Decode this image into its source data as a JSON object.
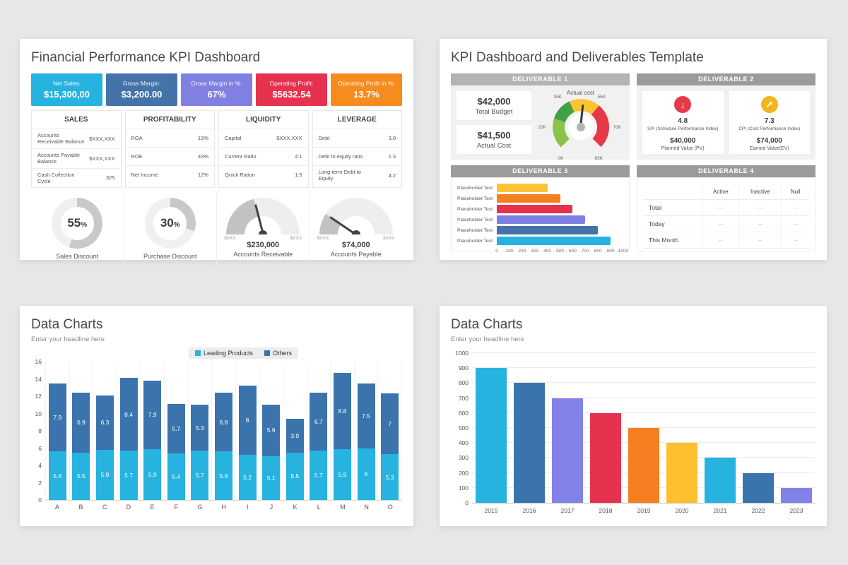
{
  "background": "#e7e7e9",
  "slide1": {
    "title": "Financial Performance KPI Dashboard",
    "kpis": [
      {
        "label": "Net Sales:",
        "value": "$15,300,00",
        "color": "#26b3e0"
      },
      {
        "label": "Gross Margin:",
        "value": "$3,200.00",
        "color": "#4373a8"
      },
      {
        "label": "Gross Margin in %:",
        "value": "67%",
        "color": "#8080e2"
      },
      {
        "label": "Operating Profit:",
        "value": "$5632.54",
        "color": "#e6324e"
      },
      {
        "label": "Operating Profit in %:",
        "value": "13.7%",
        "color": "#f68b1e"
      }
    ],
    "tables": [
      {
        "title": "SALES",
        "rows": [
          [
            "Accounts Receivable Balance",
            "$XXX,XXX"
          ],
          [
            "Accounts Payable Balance",
            "$XXX,XXX"
          ],
          [
            "Cash Collection Cycle",
            "325"
          ]
        ]
      },
      {
        "title": "PROFITABILITY",
        "rows": [
          [
            "ROA",
            "19%"
          ],
          [
            "ROE",
            "43%"
          ],
          [
            "Net Income",
            "12%"
          ]
        ]
      },
      {
        "title": "LIQUIDITY",
        "rows": [
          [
            "Capital",
            "$XXX,XXX"
          ],
          [
            "Current Ratio",
            "4:1"
          ],
          [
            "Quick Ration",
            "1:5"
          ]
        ]
      },
      {
        "title": "LEVERAGE",
        "rows": [
          [
            "Debt",
            "3.0"
          ],
          [
            "Debt to equity ratio",
            "1:3"
          ],
          [
            "Long-term Debt to Equity",
            "4:2"
          ]
        ]
      }
    ],
    "donuts": [
      {
        "percent": 55,
        "label": "Sales Discount",
        "arc_color": "#c9c9c9",
        "track_color": "#f0f0f0"
      },
      {
        "percent": 30,
        "label": "Purchase Discount",
        "arc_color": "#c9c9c9",
        "track_color": "#f0f0f0"
      }
    ],
    "gauges": [
      {
        "min_label": "$XXX",
        "max_label": "$XXX",
        "value": "$230,000",
        "label": "Accounts Receivable",
        "fill_pct": 42,
        "fill_color": "#c2c2c2",
        "track_color": "#eeeeee"
      },
      {
        "min_label": "$XXX",
        "max_label": "$XXX",
        "value": "$74,000",
        "label": "Accounts Payable",
        "fill_pct": 19,
        "fill_color": "#c2c2c2",
        "track_color": "#eeeeee"
      }
    ]
  },
  "slide2": {
    "title": "KPI Dashboard and Deliverables Template",
    "deliverable1": {
      "header": "DELIVERABLE 1",
      "header_color": "#b3b3b3",
      "boxes": [
        {
          "value": "$42,000",
          "label": "Total Budget"
        },
        {
          "value": "$41,500",
          "label": "Actual Cost"
        }
      ],
      "gauge": {
        "title": "Actual cost",
        "ticks": {
          "bottom_left": "0K",
          "left": "20K",
          "top_left": "35K",
          "top_right": "55K",
          "right": "70K",
          "bottom_right": "85K"
        },
        "segments": [
          {
            "to_deg": 63,
            "color": "#8bc34a"
          },
          {
            "to_deg": 111,
            "color": "#43a047"
          },
          {
            "to_deg": 175,
            "color": "#fcc335"
          },
          {
            "to_deg": 270,
            "color": "#e53946"
          }
        ],
        "needle_deg": 6
      }
    },
    "deliverable2": {
      "header": "DELIVERABLE 2",
      "header_color": "#9b9b9b",
      "cards": [
        {
          "icon": "down-arrow-icon",
          "glyph": "↓",
          "circle_color": "#e6394b",
          "value": "4.8",
          "label": "SPI (Schedule Performance Index)",
          "amount": "$40,000",
          "amount_label": "Planned Value (PV)"
        },
        {
          "icon": "up-right-arrow-icon",
          "glyph": "↗",
          "circle_color": "#f2b51d",
          "value": "7.3",
          "label": "CPI (Cost Performance Index)",
          "amount": "$74,000",
          "amount_label": "Earned Value(EV)"
        }
      ]
    },
    "deliverable3": {
      "header": "DELIVERABLE 3",
      "header_color": "#9b9b9b"
    },
    "deliverable4": {
      "header": "DELIVERABLE 4",
      "header_color": "#9b9b9b",
      "columns": [
        "Active",
        "Inactive",
        "Null"
      ],
      "rows": [
        {
          "label": "Total",
          "values": [
            "--",
            "--",
            "--"
          ]
        },
        {
          "label": "Today",
          "values": [
            "--",
            "--",
            "--"
          ]
        },
        {
          "label": "This Month",
          "values": [
            "--",
            "--",
            "--"
          ]
        }
      ]
    }
  },
  "slide3": {
    "title": "Data Charts",
    "subtitle": "Enter your headline here"
  },
  "slide4": {
    "title": "Data Charts",
    "subtitle": "Enter your headline here"
  },
  "chart_data": [
    {
      "id": "deliverable3-bars",
      "type": "bar",
      "orientation": "horizontal",
      "title": "DELIVERABLE 3",
      "categories": [
        "Placeholder Text",
        "Placeholder Text",
        "Placeholder Text",
        "Placeholder Text",
        "Placeholder Text",
        "Placeholder Text"
      ],
      "values": [
        400,
        500,
        600,
        700,
        800,
        900
      ],
      "colors": [
        "#fcc335",
        "#f57f20",
        "#e6324e",
        "#7e7fe2",
        "#4373a8",
        "#26b3e0"
      ],
      "xlim": [
        0,
        1000
      ],
      "xticks": [
        0,
        100,
        200,
        300,
        400,
        500,
        600,
        700,
        800,
        900,
        1000
      ],
      "grid": false
    },
    {
      "id": "stacked-products",
      "type": "bar",
      "stacked": true,
      "title": "Data Charts",
      "categories": [
        "A",
        "B",
        "C",
        "D",
        "E",
        "F",
        "G",
        "H",
        "I",
        "J",
        "K",
        "L",
        "M",
        "N",
        "O"
      ],
      "series": [
        {
          "name": "Leading Products",
          "color": "#26b3e0",
          "values": [
            5.6,
            5.5,
            5.8,
            5.7,
            5.9,
            5.4,
            5.7,
            5.6,
            5.2,
            5.1,
            5.5,
            5.7,
            5.9,
            6,
            5.3
          ]
        },
        {
          "name": "Others",
          "color": "#3b74ad",
          "values": [
            7.9,
            6.9,
            6.3,
            8.4,
            7.9,
            5.7,
            5.3,
            6.8,
            8,
            5.9,
            3.9,
            6.7,
            8.8,
            7.5,
            7
          ]
        }
      ],
      "ylim": [
        0,
        16
      ],
      "yticks": [
        0,
        2,
        4,
        6,
        8,
        10,
        12,
        14,
        16
      ],
      "legend_position": "top",
      "grid": "vertical"
    },
    {
      "id": "yearly-bars",
      "type": "bar",
      "title": "Data Charts",
      "categories": [
        "2015",
        "2016",
        "2017",
        "2018",
        "2019",
        "2020",
        "2021",
        "2022",
        "2023"
      ],
      "values": [
        900,
        800,
        700,
        600,
        500,
        400,
        300,
        200,
        100
      ],
      "colors": [
        "#26b3e0",
        "#3b74ad",
        "#8181e8",
        "#e6324e",
        "#f57f20",
        "#fcc02f",
        "#26b3e0",
        "#3b74ad",
        "#8181e8"
      ],
      "ylim": [
        0,
        1000
      ],
      "yticks": [
        0,
        100,
        200,
        300,
        400,
        500,
        600,
        700,
        800,
        900,
        1000
      ],
      "grid": "horizontal"
    },
    {
      "id": "sales-discount-donut",
      "type": "pie",
      "title": "Sales Discount",
      "percent": 55
    },
    {
      "id": "purchase-discount-donut",
      "type": "pie",
      "title": "Purchase Discount",
      "percent": 30
    },
    {
      "id": "accounts-receivable-gauge",
      "type": "gauge",
      "title": "Accounts Receivable",
      "value": "$230,000"
    },
    {
      "id": "accounts-payable-gauge",
      "type": "gauge",
      "title": "Accounts Payable",
      "value": "$74,000"
    },
    {
      "id": "actual-cost-gauge",
      "type": "gauge",
      "title": "Actual cost",
      "ticks": [
        "0K",
        "20K",
        "35K",
        "55K",
        "70K",
        "85K"
      ],
      "budget": "$42,000",
      "actual": "$41,500"
    }
  ]
}
